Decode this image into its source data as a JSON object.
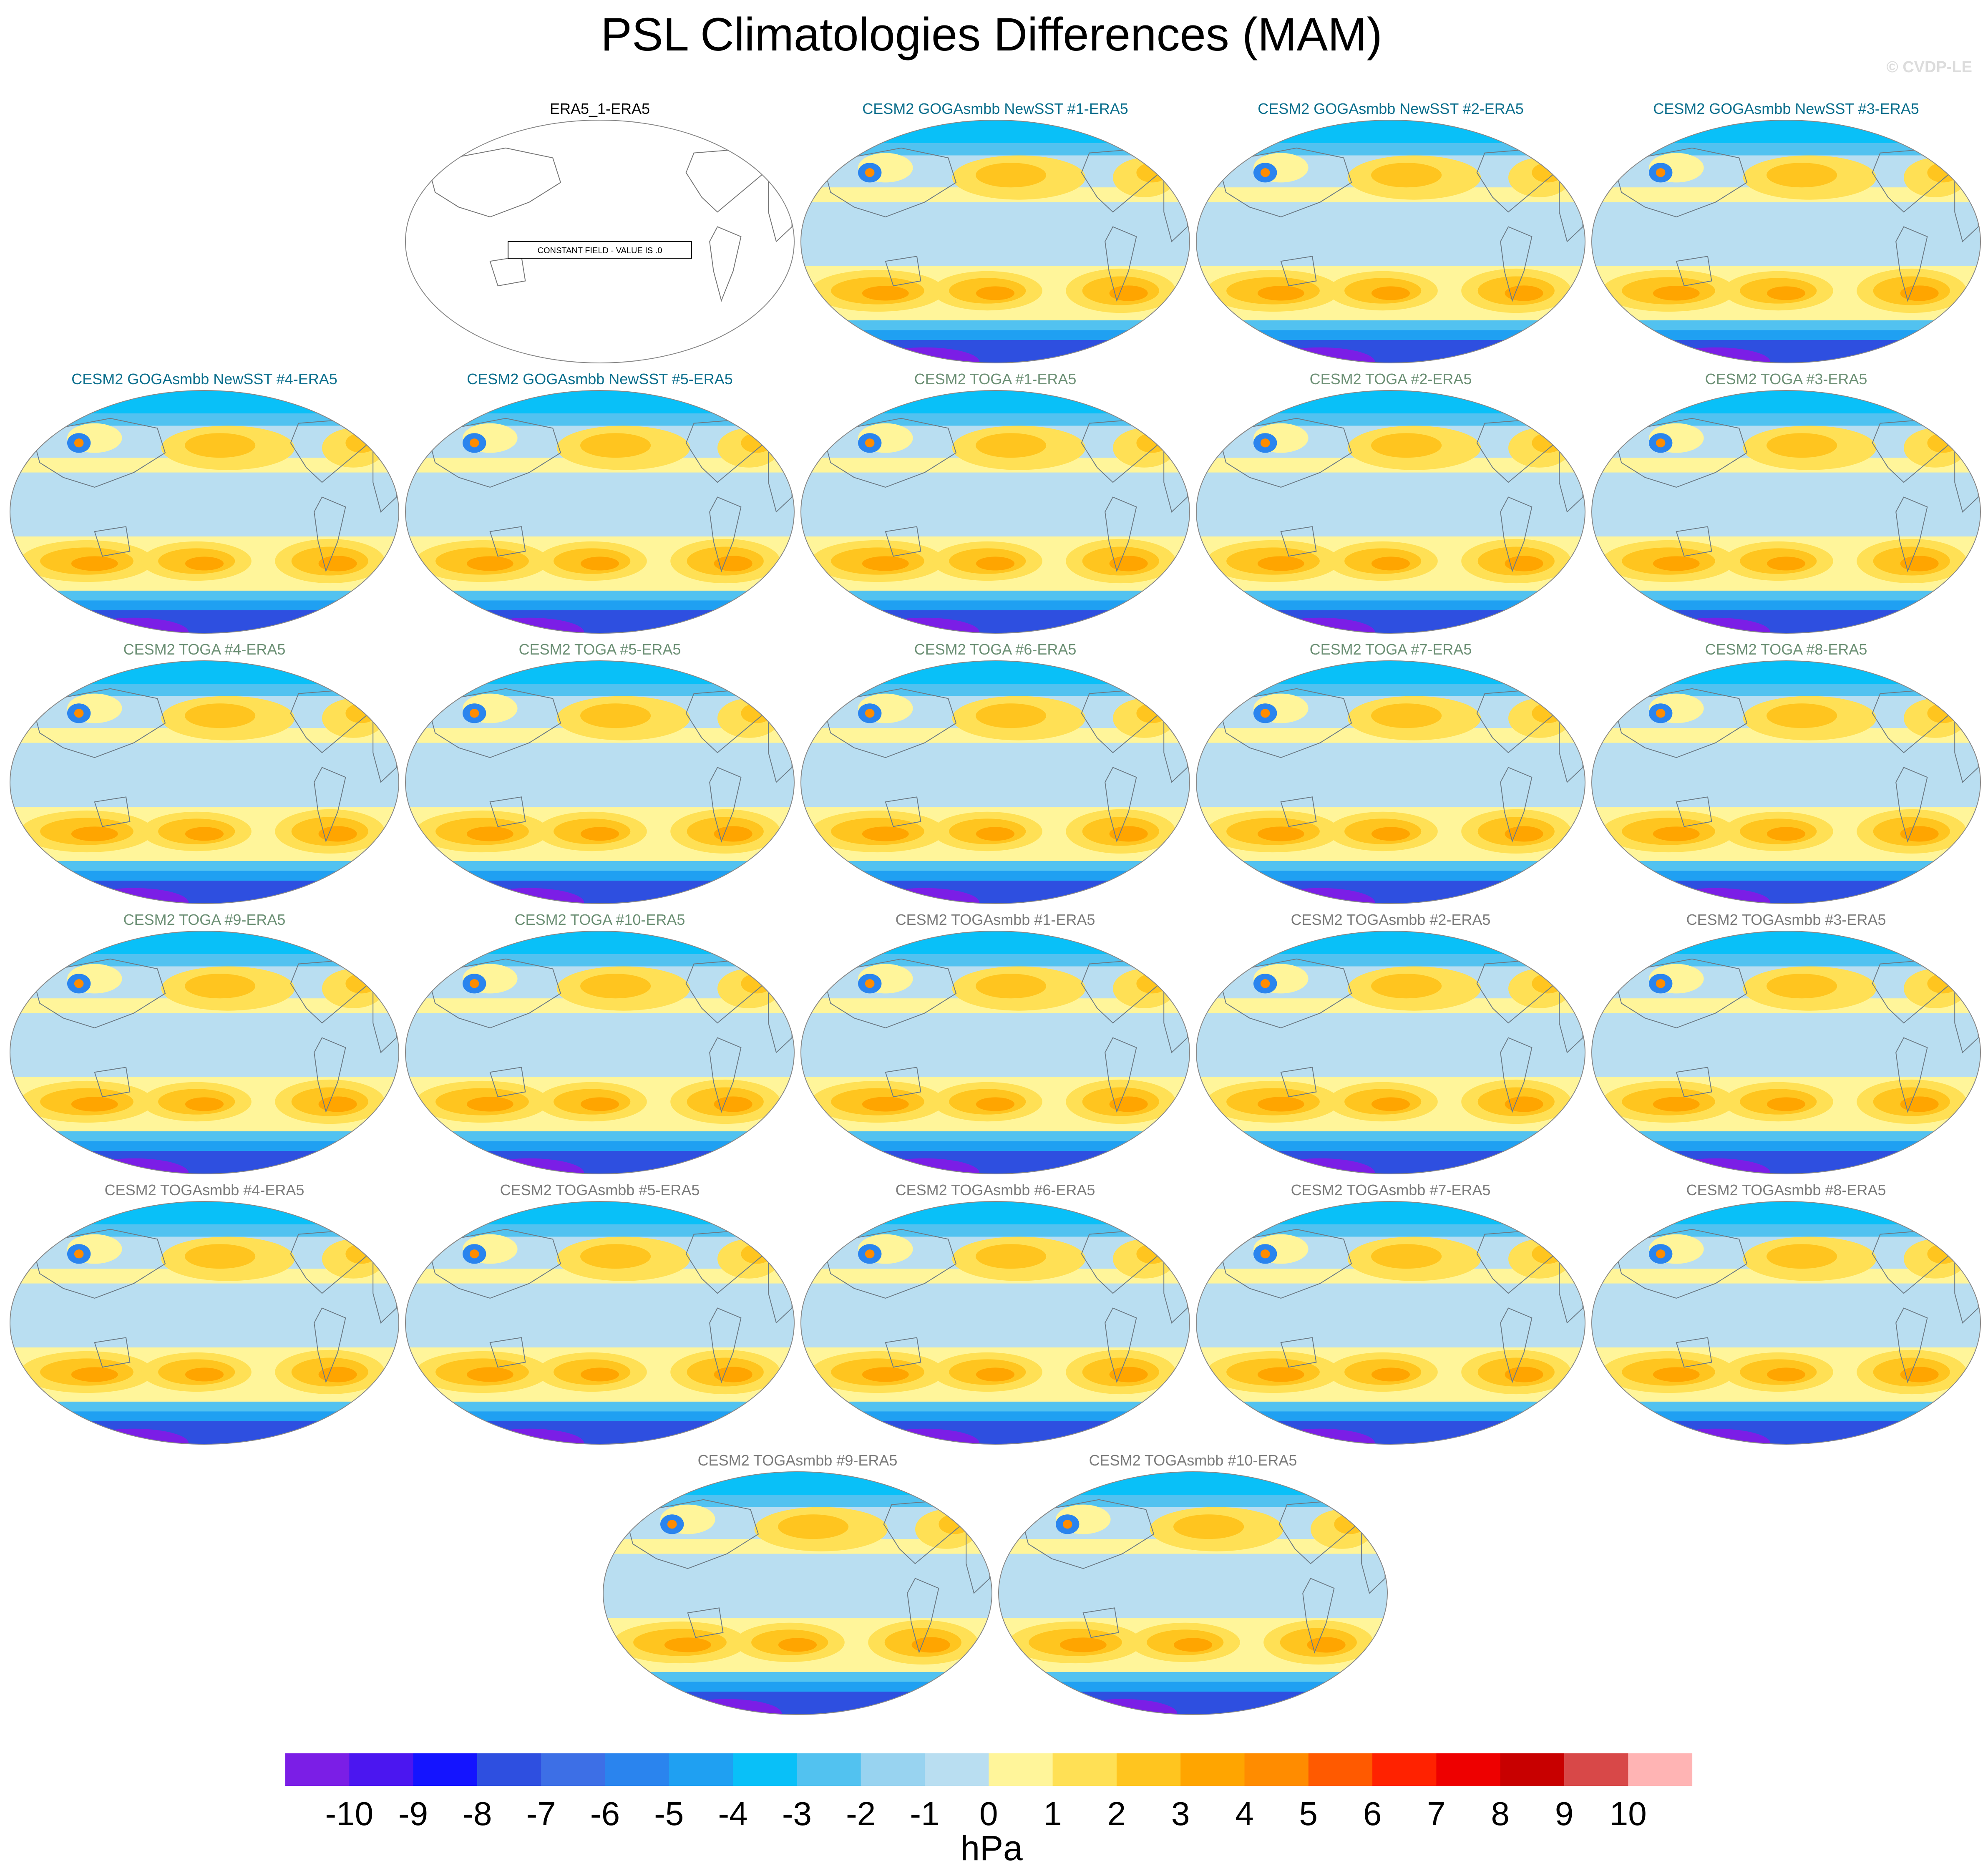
{
  "chart_data": {
    "type": "heatmap",
    "projection": "robinson-world-map",
    "title": "PSL Climatologies Differences (MAM)",
    "watermark": "© CVDP-LE",
    "units": "hPa",
    "colorbar": {
      "levels": [
        -10,
        -9,
        -8,
        -7,
        -6,
        -5,
        -4,
        -3,
        -2,
        -1,
        0,
        1,
        2,
        3,
        4,
        5,
        6,
        7,
        8,
        9,
        10
      ],
      "colors": [
        "#7b1ee6",
        "#4b16f0",
        "#1414ff",
        "#2e4fe0",
        "#3d6fe6",
        "#2a84ee",
        "#1fa0f2",
        "#09c0f8",
        "#52c2f0",
        "#98d3f0",
        "#b9def1",
        "#fff59a",
        "#ffe055",
        "#ffc51f",
        "#ffa500",
        "#ff8c00",
        "#ff5a00",
        "#ff2200",
        "#ee0000",
        "#c80000",
        "#d84848",
        "#ffb4b4"
      ]
    },
    "constant_field_label": "CONSTANT FIELD - VALUE IS .0",
    "panels": [
      {
        "title": "ERA5_1-ERA5",
        "group": "obs",
        "constant": true
      },
      {
        "title": "CESM2 GOGAsmbb NewSST #1-ERA5",
        "group": "goga"
      },
      {
        "title": "CESM2 GOGAsmbb NewSST #2-ERA5",
        "group": "goga"
      },
      {
        "title": "CESM2 GOGAsmbb NewSST #3-ERA5",
        "group": "goga"
      },
      {
        "title": "CESM2 GOGAsmbb NewSST #4-ERA5",
        "group": "goga"
      },
      {
        "title": "CESM2 GOGAsmbb NewSST #5-ERA5",
        "group": "goga"
      },
      {
        "title": "CESM2 TOGA #1-ERA5",
        "group": "toga"
      },
      {
        "title": "CESM2 TOGA #2-ERA5",
        "group": "toga"
      },
      {
        "title": "CESM2 TOGA #3-ERA5",
        "group": "toga"
      },
      {
        "title": "CESM2 TOGA #4-ERA5",
        "group": "toga"
      },
      {
        "title": "CESM2 TOGA #5-ERA5",
        "group": "toga"
      },
      {
        "title": "CESM2 TOGA #6-ERA5",
        "group": "toga"
      },
      {
        "title": "CESM2 TOGA #7-ERA5",
        "group": "toga"
      },
      {
        "title": "CESM2 TOGA #8-ERA5",
        "group": "toga"
      },
      {
        "title": "CESM2 TOGA #9-ERA5",
        "group": "toga"
      },
      {
        "title": "CESM2 TOGA #10-ERA5",
        "group": "toga"
      },
      {
        "title": "CESM2 TOGAsmbb #1-ERA5",
        "group": "togasmbb"
      },
      {
        "title": "CESM2 TOGAsmbb #2-ERA5",
        "group": "togasmbb"
      },
      {
        "title": "CESM2 TOGAsmbb #3-ERA5",
        "group": "togasmbb"
      },
      {
        "title": "CESM2 TOGAsmbb #4-ERA5",
        "group": "togasmbb"
      },
      {
        "title": "CESM2 TOGAsmbb #5-ERA5",
        "group": "togasmbb"
      },
      {
        "title": "CESM2 TOGAsmbb #6-ERA5",
        "group": "togasmbb"
      },
      {
        "title": "CESM2 TOGAsmbb #7-ERA5",
        "group": "togasmbb"
      },
      {
        "title": "CESM2 TOGAsmbb #8-ERA5",
        "group": "togasmbb"
      },
      {
        "title": "CESM2 TOGAsmbb #9-ERA5",
        "group": "togasmbb"
      },
      {
        "title": "CESM2 TOGAsmbb #10-ERA5",
        "group": "togasmbb"
      }
    ],
    "title_colors": {
      "obs": "#000000",
      "goga": "#0a6e8c",
      "toga": "#6b8f74",
      "togasmbb": "#7a7a7a"
    }
  }
}
